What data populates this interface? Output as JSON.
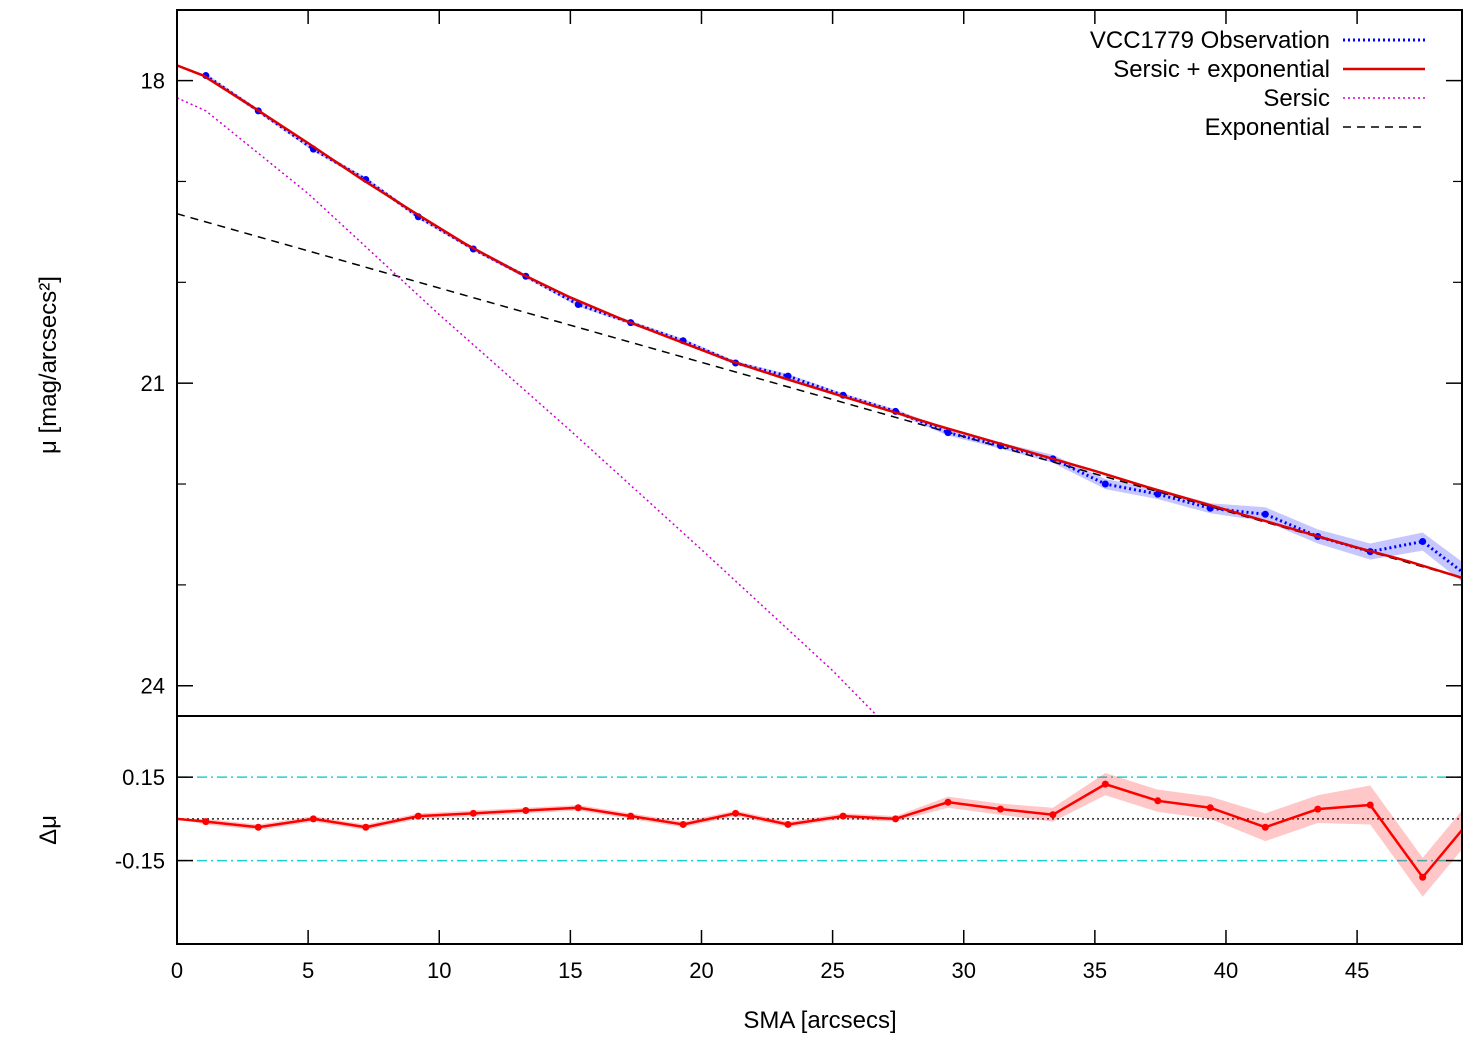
{
  "chart_data": [
    {
      "type": "line",
      "panel": "main",
      "xlabel": "SMA [arcsecs]",
      "ylabel": "μ [mag/arcsecs²]",
      "xlim": [
        0,
        49
      ],
      "ylim": [
        24.3,
        17.3
      ],
      "y_inverted": true,
      "xticks": [
        0,
        5,
        10,
        15,
        20,
        25,
        30,
        35,
        40,
        45
      ],
      "yticks": [
        18,
        21,
        24
      ],
      "ytick_minor": [
        19,
        20,
        22,
        23
      ],
      "legend_position": "top-right",
      "series": [
        {
          "name": "VCC1779 Observation",
          "color": "#0000ff",
          "style": "dotted-with-points",
          "x": [
            1.1,
            3.1,
            5.2,
            7.2,
            9.2,
            11.3,
            13.3,
            15.3,
            17.3,
            19.3,
            21.3,
            23.3,
            25.4,
            27.4,
            29.4,
            31.4,
            33.4,
            35.4,
            37.4,
            39.4,
            41.5,
            43.5,
            45.5,
            47.5,
            49.0
          ],
          "y": [
            17.95,
            18.3,
            18.68,
            18.98,
            19.35,
            19.67,
            19.94,
            20.22,
            20.4,
            20.58,
            20.8,
            20.93,
            21.12,
            21.28,
            21.49,
            21.62,
            21.75,
            22.0,
            22.1,
            22.24,
            22.3,
            22.52,
            22.67,
            22.57,
            22.87
          ],
          "band": [
            0.02,
            0.02,
            0.02,
            0.02,
            0.02,
            0.02,
            0.02,
            0.02,
            0.02,
            0.02,
            0.02,
            0.02,
            0.02,
            0.02,
            0.03,
            0.03,
            0.04,
            0.05,
            0.05,
            0.05,
            0.07,
            0.07,
            0.08,
            0.09,
            0.1
          ]
        },
        {
          "name": "Sersic + exponential",
          "color": "#e00000",
          "style": "solid",
          "x": [
            0,
            1,
            3,
            5,
            7,
            9,
            11,
            13,
            15,
            17,
            19,
            21,
            23,
            25,
            27,
            29,
            31,
            33,
            35,
            37,
            39,
            41,
            43,
            45,
            47,
            49
          ],
          "y": [
            17.85,
            17.95,
            18.28,
            18.62,
            18.97,
            19.3,
            19.62,
            19.9,
            20.15,
            20.37,
            20.57,
            20.77,
            20.94,
            21.1,
            21.26,
            21.42,
            21.57,
            21.72,
            21.87,
            22.03,
            22.18,
            22.33,
            22.48,
            22.63,
            22.77,
            22.93
          ]
        },
        {
          "name": "Sersic",
          "color": "#d000d0",
          "style": "dotted",
          "x": [
            0,
            1.1,
            5,
            10,
            15,
            20,
            25,
            26.7
          ],
          "y": [
            18.17,
            18.3,
            19.12,
            20.32,
            21.47,
            22.65,
            23.85,
            24.3
          ]
        },
        {
          "name": "Exponential",
          "color": "#000000",
          "style": "dashed",
          "x": [
            0,
            49
          ],
          "y": [
            19.32,
            22.93
          ]
        }
      ]
    },
    {
      "type": "line",
      "panel": "residual",
      "ylabel": "Δμ",
      "xlabel": "SMA [arcsecs]",
      "xlim": [
        0,
        49
      ],
      "ylim": [
        -0.45,
        0.37
      ],
      "yticks": [
        0.15,
        -0.15
      ],
      "ytick_labels": [
        "0.15",
        "-0.15"
      ],
      "reference_lines": [
        {
          "y": 0.15,
          "color": "#20d0d0",
          "style": "dash-dot"
        },
        {
          "y": -0.15,
          "color": "#20d0d0",
          "style": "dash-dot"
        },
        {
          "y": 0,
          "color": "#000000",
          "style": "dotted"
        }
      ],
      "series": [
        {
          "name": "",
          "color": "#ff0000",
          "style": "solid-with-points",
          "x": [
            0,
            1.1,
            3.1,
            5.2,
            7.2,
            9.2,
            11.3,
            13.3,
            15.3,
            17.3,
            19.3,
            21.3,
            23.3,
            25.4,
            27.4,
            29.4,
            31.4,
            33.4,
            35.4,
            37.4,
            39.4,
            41.5,
            43.5,
            45.5,
            47.5,
            49.0
          ],
          "y": [
            0.0,
            -0.01,
            -0.03,
            0.0,
            -0.03,
            0.01,
            0.02,
            0.03,
            0.04,
            0.01,
            -0.02,
            0.02,
            -0.02,
            0.01,
            0.0,
            0.06,
            0.035,
            0.015,
            0.125,
            0.065,
            0.04,
            -0.03,
            0.035,
            0.05,
            -0.21,
            -0.04
          ],
          "band": [
            0.0,
            0.01,
            0.01,
            0.01,
            0.01,
            0.01,
            0.01,
            0.01,
            0.01,
            0.01,
            0.01,
            0.01,
            0.01,
            0.01,
            0.01,
            0.02,
            0.02,
            0.025,
            0.04,
            0.04,
            0.04,
            0.05,
            0.05,
            0.07,
            0.07,
            0.07
          ]
        }
      ]
    }
  ]
}
